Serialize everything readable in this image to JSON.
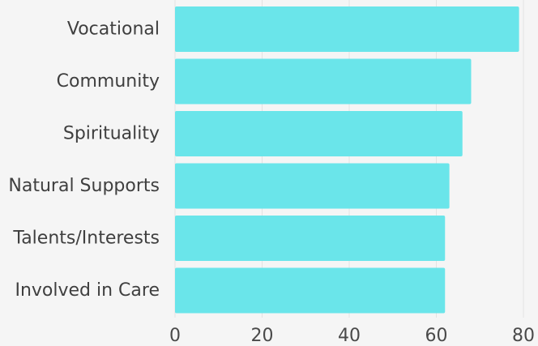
{
  "chart_data": {
    "type": "bar",
    "orientation": "horizontal",
    "title": "",
    "xlabel": "",
    "ylabel": "",
    "categories": [
      "Vocational",
      "Community",
      "Spirituality",
      "Natural Supports",
      "Talents/Interests",
      "Involved in Care"
    ],
    "values": [
      79,
      68,
      66,
      63,
      62,
      62
    ],
    "xlim": [
      0,
      80
    ],
    "xticks": [
      0,
      20,
      40,
      60,
      80
    ],
    "grid": true,
    "bar_color": "#6ae5ea",
    "background": "#f5f5f5"
  }
}
